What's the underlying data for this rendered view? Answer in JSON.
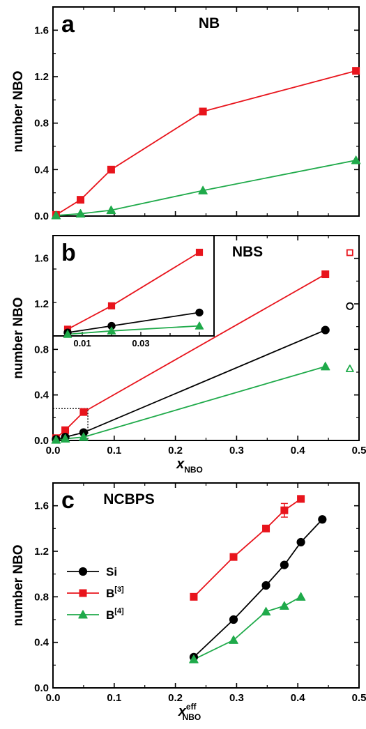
{
  "chart_data": [
    {
      "type": "line",
      "panel_label": "a",
      "title": "NB",
      "xlabel": "",
      "ylabel": "number NBO",
      "xlim": [
        0,
        0.5
      ],
      "ylim": [
        0,
        1.8
      ],
      "y_ticks": [
        "0.0",
        "0.4",
        "0.8",
        "1.2",
        "1.6"
      ],
      "x_tick_labels_shown": false,
      "series": [
        {
          "color": "#e8141c",
          "marker": "square",
          "x": [
            0.005,
            0.045,
            0.095,
            0.245,
            0.495
          ],
          "y": [
            0.01,
            0.14,
            0.4,
            0.9,
            1.25
          ]
        },
        {
          "color": "#1faa4a",
          "marker": "triangle",
          "x": [
            0.005,
            0.045,
            0.095,
            0.245,
            0.495
          ],
          "y": [
            0.005,
            0.02,
            0.05,
            0.22,
            0.48
          ]
        }
      ]
    },
    {
      "type": "line",
      "panel_label": "b",
      "title": "NBS",
      "xlabel": "x",
      "xlabel_sub": "NBO",
      "ylabel": "number NBO",
      "xlim": [
        0,
        0.5
      ],
      "ylim": [
        0,
        1.8
      ],
      "y_ticks": [
        "0.0",
        "0.4",
        "0.8",
        "1.2",
        "1.6"
      ],
      "x_ticks": [
        "0.0",
        "0.1",
        "0.2",
        "0.3",
        "0.4",
        "0.5"
      ],
      "series": [
        {
          "color": "#e8141c",
          "marker": "square",
          "x": [
            0.005,
            0.02,
            0.05,
            0.445
          ],
          "y": [
            0.02,
            0.09,
            0.25,
            1.46
          ]
        },
        {
          "color": "#000000",
          "marker": "circle",
          "x": [
            0.005,
            0.02,
            0.05,
            0.445
          ],
          "y": [
            0.01,
            0.03,
            0.07,
            0.97
          ]
        },
        {
          "color": "#1faa4a",
          "marker": "triangle",
          "x": [
            0.005,
            0.02,
            0.05,
            0.445
          ],
          "y": [
            0.005,
            0.015,
            0.03,
            0.65
          ]
        }
      ],
      "open_markers": [
        {
          "color": "#e8141c",
          "marker": "square",
          "x": 0.485,
          "y": 1.65
        },
        {
          "color": "#000000",
          "marker": "circle",
          "x": 0.485,
          "y": 1.18
        },
        {
          "color": "#1faa4a",
          "marker": "triangle",
          "x": 0.485,
          "y": 0.63
        }
      ],
      "zoom_box": {
        "x": [
          0,
          0.057
        ],
        "y": [
          0,
          0.28
        ]
      },
      "inset": {
        "xlim": [
          0,
          0.055
        ],
        "ylim": [
          0,
          0.3
        ],
        "x_ticks": [
          "0.01",
          "0.03"
        ],
        "series": [
          {
            "color": "#e8141c",
            "marker": "square",
            "x": [
              0.005,
              0.02,
              0.05
            ],
            "y": [
              0.02,
              0.09,
              0.25
            ]
          },
          {
            "color": "#000000",
            "marker": "circle",
            "x": [
              0.005,
              0.02,
              0.05
            ],
            "y": [
              0.01,
              0.03,
              0.07
            ]
          },
          {
            "color": "#1faa4a",
            "marker": "triangle",
            "x": [
              0.005,
              0.02,
              0.05
            ],
            "y": [
              0.005,
              0.015,
              0.03
            ]
          }
        ]
      }
    },
    {
      "type": "line",
      "panel_label": "c",
      "title": "NCBPS",
      "xlabel": "x",
      "xlabel_sub": "NBO",
      "xlabel_sup": "eff",
      "ylabel": "number NBO",
      "xlim": [
        0,
        0.5
      ],
      "ylim": [
        0,
        1.8
      ],
      "y_ticks": [
        "0.0",
        "0.4",
        "0.8",
        "1.2",
        "1.6"
      ],
      "x_ticks": [
        "0.0",
        "0.1",
        "0.2",
        "0.3",
        "0.4",
        "0.5"
      ],
      "legend_position": "lower-left",
      "series": [
        {
          "name": "Si",
          "color": "#000000",
          "marker": "circle",
          "x": [
            0.23,
            0.295,
            0.348,
            0.378,
            0.405,
            0.44
          ],
          "y": [
            0.27,
            0.6,
            0.9,
            1.08,
            1.28,
            1.48
          ]
        },
        {
          "name": "B[3]",
          "color": "#e8141c",
          "marker": "square",
          "x": [
            0.23,
            0.295,
            0.348,
            0.378,
            0.405
          ],
          "y": [
            0.8,
            1.15,
            1.4,
            1.56,
            1.66
          ]
        },
        {
          "name": "B[4]",
          "color": "#1faa4a",
          "marker": "triangle",
          "x": [
            0.23,
            0.295,
            0.348,
            0.378,
            0.405
          ],
          "y": [
            0.25,
            0.42,
            0.67,
            0.72,
            0.8
          ]
        }
      ],
      "error_bars": [
        {
          "series": "B[3]",
          "x": 0.378,
          "y": 1.56,
          "err": 0.06
        }
      ]
    }
  ]
}
